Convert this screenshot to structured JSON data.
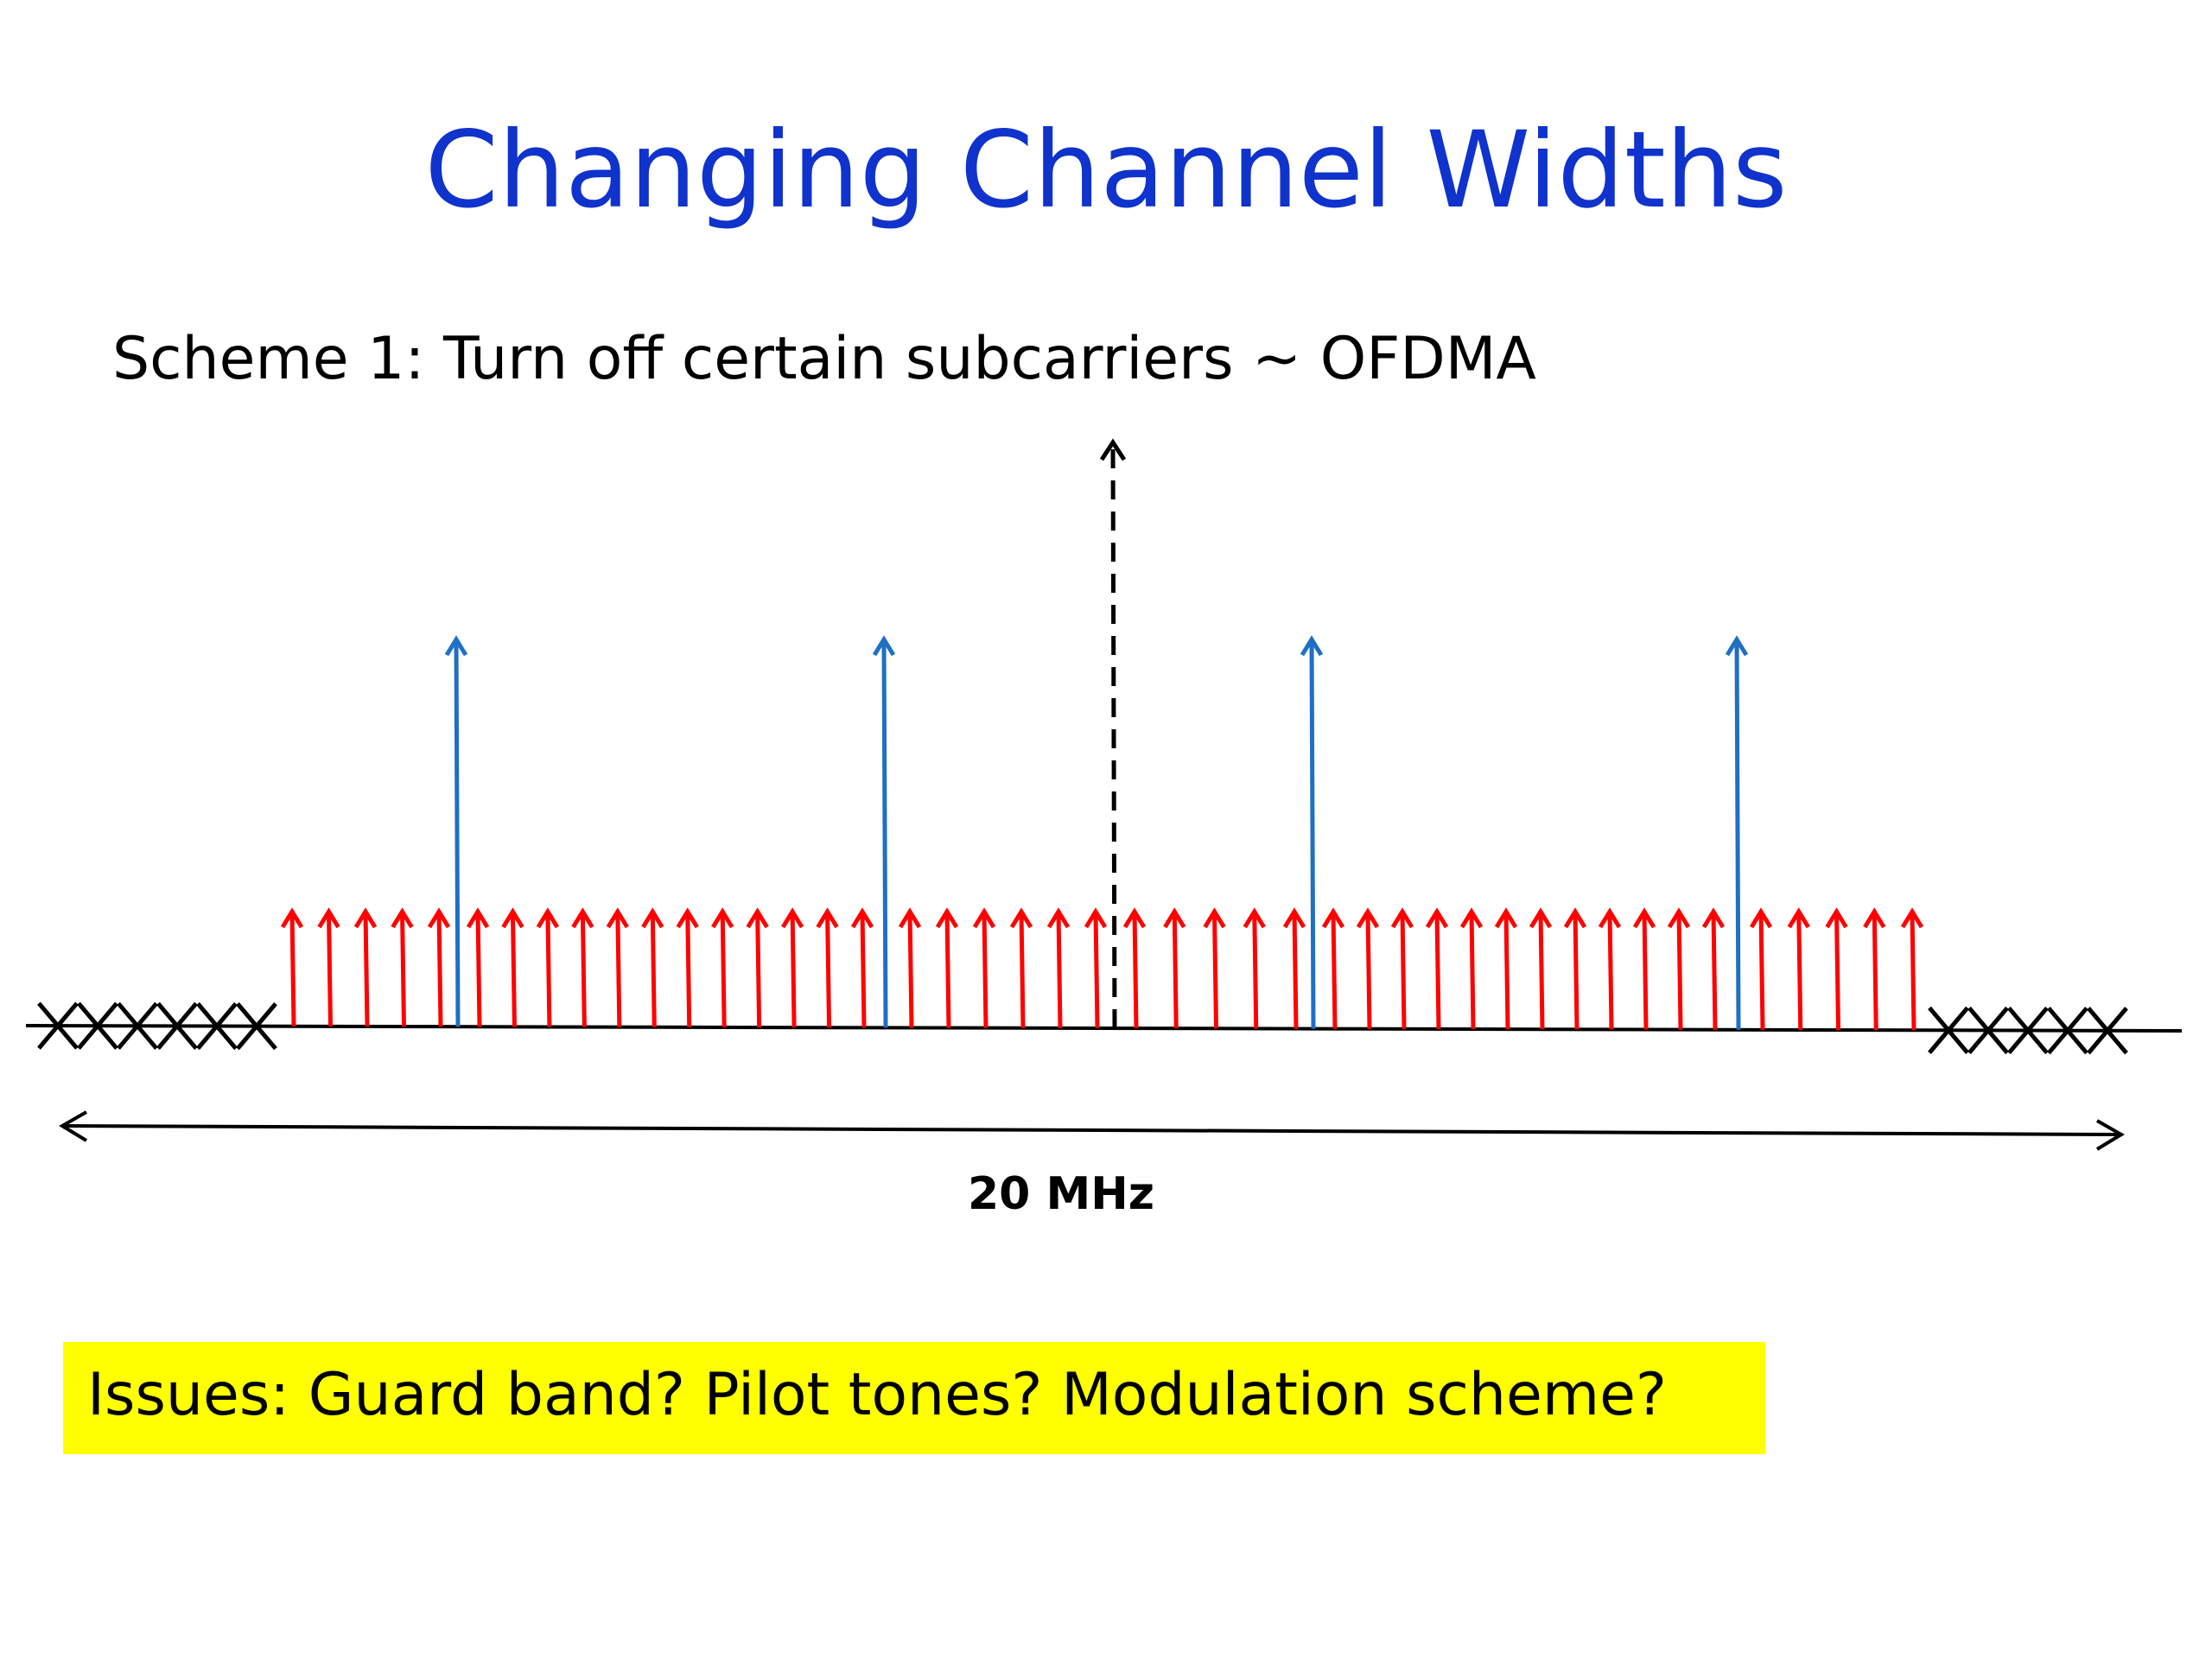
{
  "slide": {
    "title": "Changing Channel Widths",
    "subtitle": "Scheme 1: Turn off certain subcarriers ~ OFDMA",
    "bandwidth_label": "20 MHz",
    "issues": "Issues: Guard band? Pilot tones? Modulation scheme?"
  },
  "diagram": {
    "data_subcarrier_groups": [
      5,
      12,
      6,
      5,
      12,
      5
    ],
    "pilot_tone_count": 4,
    "left_guard_marks": 6,
    "right_guard_marks": 5,
    "colors": {
      "data_subcarrier": "#FF0000",
      "pilot_tone": "#1F6FC5",
      "dc_subcarrier": "#000000",
      "guard_mark": "#000000",
      "axis": "#000000",
      "highlight": "#FFFF00",
      "title": "#0F33CC"
    },
    "icons": {
      "data": "up-arrow-icon",
      "pilot": "up-arrow-icon",
      "dc": "dashed-up-arrow-icon",
      "guard": "x-mark-icon"
    }
  }
}
